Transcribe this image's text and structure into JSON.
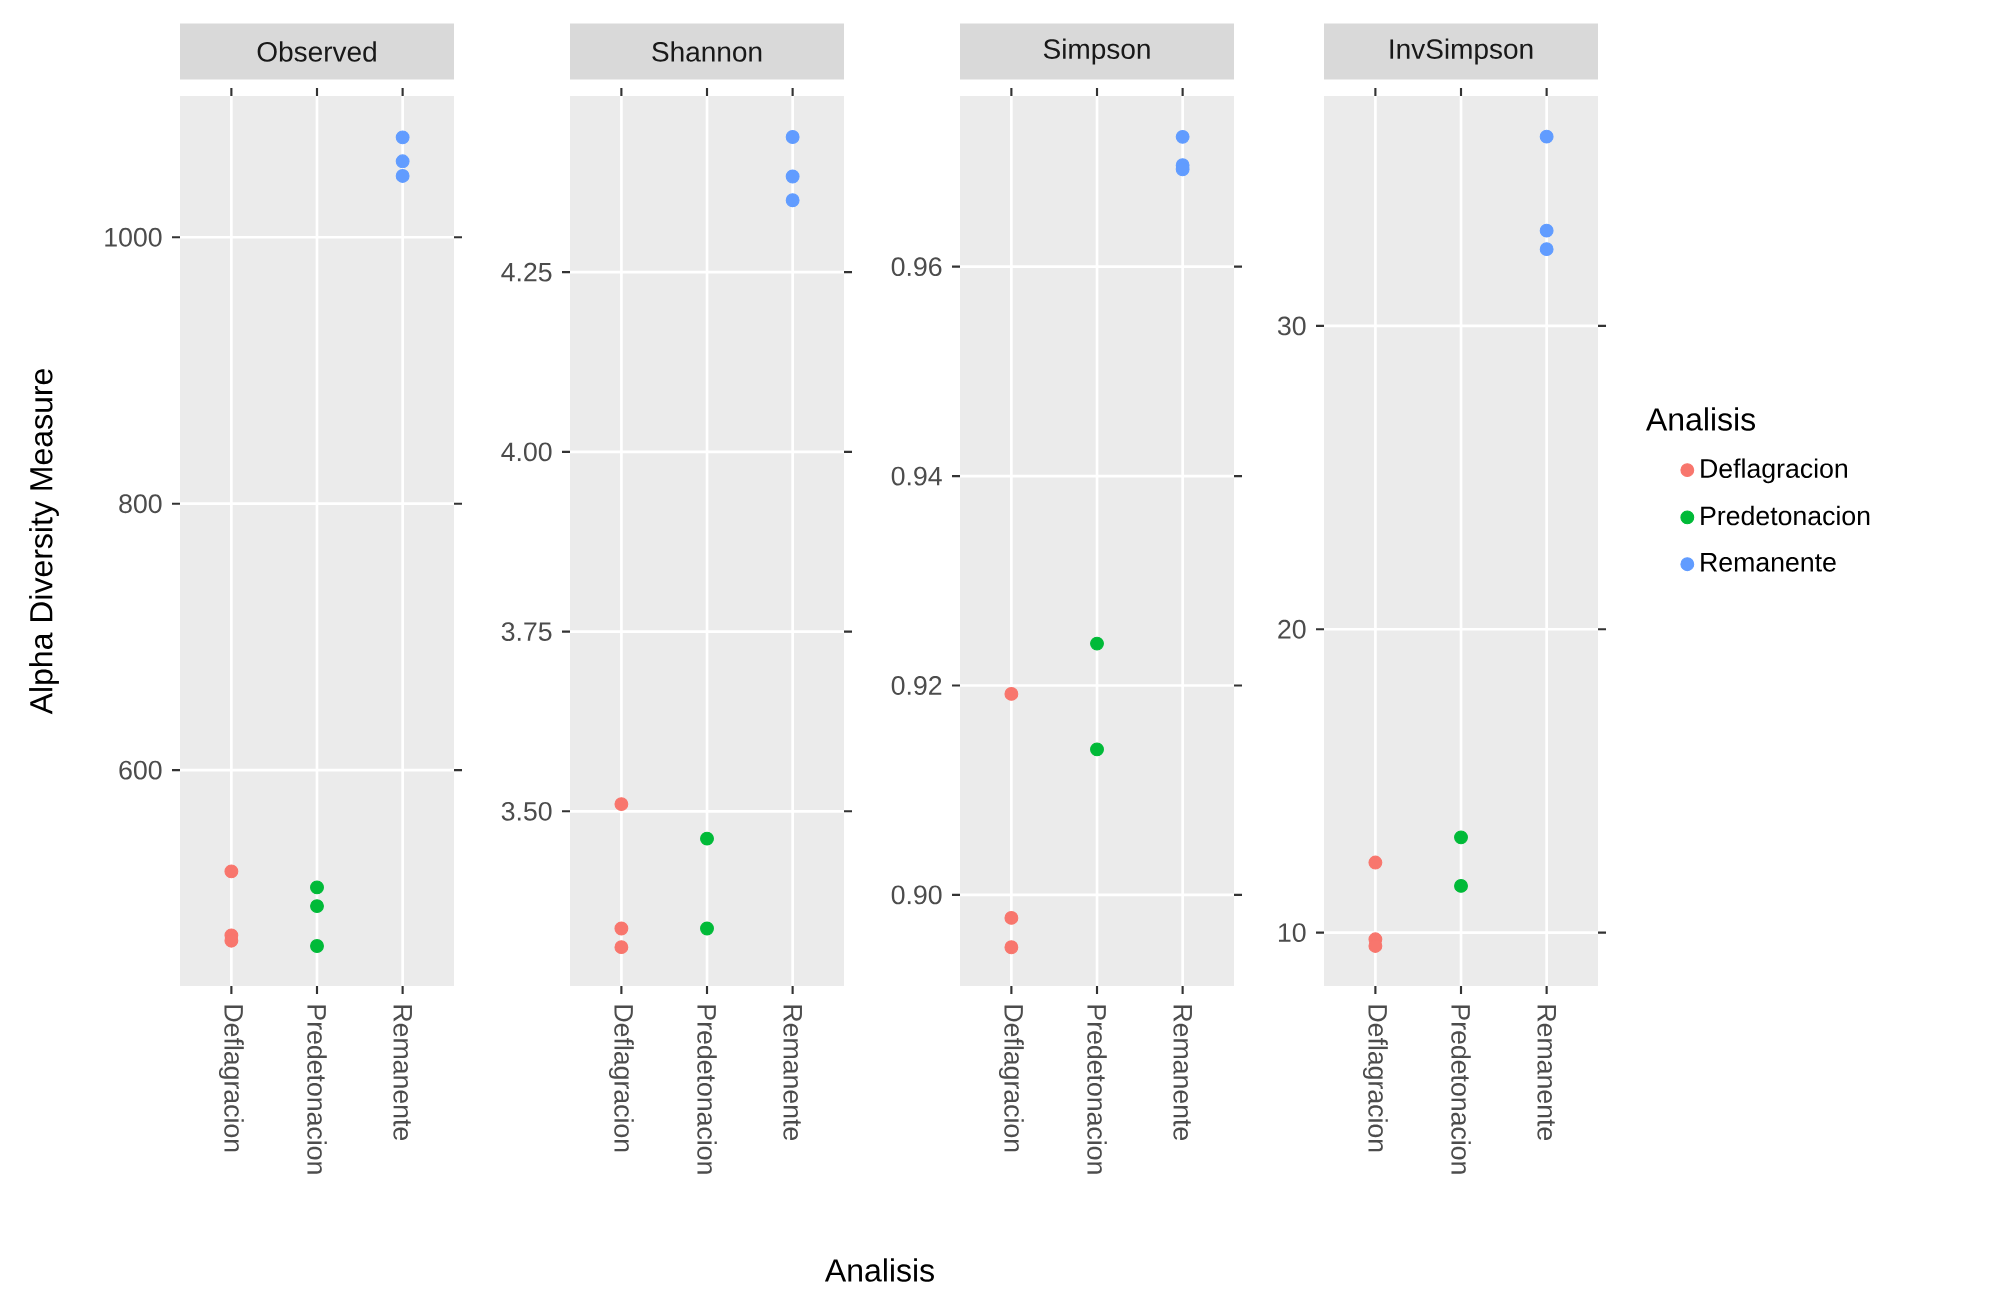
{
  "chart_data": [
    {
      "type": "scatter",
      "title": "Observed",
      "ylabel": "Alpha Diversity Measure",
      "categories": [
        "Deflagracion",
        "Predetonacion",
        "Remanente"
      ],
      "ylim": [
        438,
        1106
      ],
      "yticks": [
        600,
        800,
        1000
      ],
      "grid": true,
      "marker": "circle",
      "series": [
        {
          "color": "#F8766D",
          "x": [
            "Deflagracion",
            "Deflagracion",
            "Deflagracion"
          ],
          "values": [
            524,
            476,
            472
          ]
        },
        {
          "color": "#00BA38",
          "x": [
            "Predetonacion",
            "Predetonacion",
            "Predetonacion"
          ],
          "values": [
            512,
            498,
            468
          ]
        },
        {
          "color": "#619CFF",
          "x": [
            "Remanente",
            "Remanente",
            "Remanente"
          ],
          "values": [
            1075,
            1057,
            1046
          ]
        }
      ]
    },
    {
      "type": "scatter",
      "title": "Shannon",
      "xlabel": "Analisis",
      "categories": [
        "Deflagracion",
        "Predetonacion",
        "Remanente"
      ],
      "ylim": [
        3.257,
        4.495
      ],
      "yticks": [
        {
          "value": 3.5,
          "label": "3.50"
        },
        3.75,
        {
          "value": 4,
          "label": "4.00"
        },
        4.25
      ],
      "grid": true,
      "marker": "circle",
      "series": [
        {
          "color": "#F8766D",
          "x": [
            "Deflagracion",
            "Deflagracion",
            "Deflagracion"
          ],
          "values": [
            3.51,
            3.337,
            3.311
          ]
        },
        {
          "color": "#00BA38",
          "x": [
            "Predetonacion",
            "Predetonacion"
          ],
          "values": [
            3.462,
            3.337
          ]
        },
        {
          "color": "#619CFF",
          "x": [
            "Remanente",
            "Remanente",
            "Remanente"
          ],
          "values": [
            4.438,
            4.383,
            4.35
          ]
        }
      ]
    },
    {
      "type": "scatter",
      "title": "Simpson",
      "categories": [
        "Deflagracion",
        "Predetonacion",
        "Remanente"
      ],
      "ylim": [
        0.8913,
        0.9763
      ],
      "yticks": [
        {
          "value": 0.9,
          "label": "0.90"
        },
        0.92,
        0.94,
        0.96
      ],
      "grid": true,
      "marker": "circle",
      "series": [
        {
          "color": "#F8766D",
          "x": [
            "Deflagracion",
            "Deflagracion",
            "Deflagracion"
          ],
          "values": [
            0.9192,
            0.8978,
            0.895
          ]
        },
        {
          "color": "#00BA38",
          "x": [
            "Predetonacion",
            "Predetonacion"
          ],
          "values": [
            0.924,
            0.9139
          ]
        },
        {
          "color": "#619CFF",
          "x": [
            "Remanente",
            "Remanente",
            "Remanente"
          ],
          "values": [
            0.9724,
            0.9697,
            0.9693
          ]
        }
      ]
    },
    {
      "type": "scatter",
      "title": "InvSimpson",
      "legend_title": "Analisis",
      "legend": "right",
      "categories": [
        "Deflagracion",
        "Predetonacion",
        "Remanente"
      ],
      "ylim": [
        8.24,
        37.58
      ],
      "yticks": [
        10,
        20,
        30
      ],
      "grid": true,
      "marker": "circle",
      "series": [
        {
          "name": "Deflagracion",
          "color": "#F8766D",
          "x": [
            "Deflagracion",
            "Deflagracion",
            "Deflagracion"
          ],
          "values": [
            12.31,
            9.78,
            9.56
          ]
        },
        {
          "name": "Predetonacion",
          "color": "#00BA38",
          "x": [
            "Predetonacion",
            "Predetonacion"
          ],
          "values": [
            13.14,
            11.54
          ]
        },
        {
          "name": "Remanente",
          "color": "#619CFF",
          "x": [
            "Remanente",
            "Remanente",
            "Remanente"
          ],
          "values": [
            36.24,
            33.14,
            32.53
          ]
        }
      ]
    }
  ]
}
